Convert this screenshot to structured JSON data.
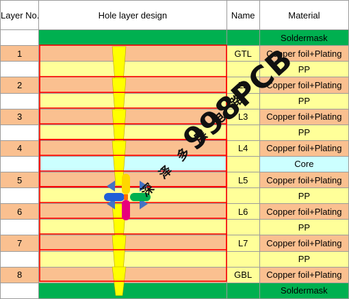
{
  "table": {
    "headers": {
      "layer": "Layer No.",
      "hole": "Hole layer design",
      "name": "Name",
      "material": "Material"
    },
    "rows": [
      {
        "type": "soldermask",
        "layer": "",
        "name": "",
        "material": "Soldermask"
      },
      {
        "type": "copper",
        "layer": "1",
        "name": "GTL",
        "material": "Copper foil+Plating"
      },
      {
        "type": "pp",
        "layer": "",
        "name": "",
        "material": "PP"
      },
      {
        "type": "copper",
        "layer": "2",
        "name": "L2",
        "material": "Copper foil+Plating"
      },
      {
        "type": "pp",
        "layer": "",
        "name": "",
        "material": "PP"
      },
      {
        "type": "copper",
        "layer": "3",
        "name": "L3",
        "material": "Copper foil+Plating"
      },
      {
        "type": "pp",
        "layer": "",
        "name": "",
        "material": "PP"
      },
      {
        "type": "copper",
        "layer": "4",
        "name": "L4",
        "material": "Copper foil+Plating"
      },
      {
        "type": "core",
        "layer": "",
        "name": "",
        "material": "Core"
      },
      {
        "type": "copper",
        "layer": "5",
        "name": "L5",
        "material": "Copper foil+Plating"
      },
      {
        "type": "pp",
        "layer": "",
        "name": "",
        "material": "PP"
      },
      {
        "type": "copper",
        "layer": "6",
        "name": "L6",
        "material": "Copper foil+Plating"
      },
      {
        "type": "pp",
        "layer": "",
        "name": "",
        "material": "PP"
      },
      {
        "type": "copper",
        "layer": "7",
        "name": "L7",
        "material": "Copper foil+Plating"
      },
      {
        "type": "pp",
        "layer": "",
        "name": "",
        "material": "PP"
      },
      {
        "type": "copper",
        "layer": "8",
        "name": "GBL",
        "material": "Copper foil+Plating"
      },
      {
        "type": "soldermask",
        "layer": "",
        "name": "",
        "material": "Soldermask"
      }
    ]
  },
  "watermark": {
    "brand": "998PCB",
    "chinese": [
      "深",
      "泽",
      "多",
      "层",
      "电",
      "路"
    ]
  },
  "colors": {
    "soldermask": "#00b050",
    "copper": "#fac090",
    "pp": "#ffff99",
    "core": "#ccffff",
    "via": "#ffff00",
    "frame": "#ff0000"
  }
}
